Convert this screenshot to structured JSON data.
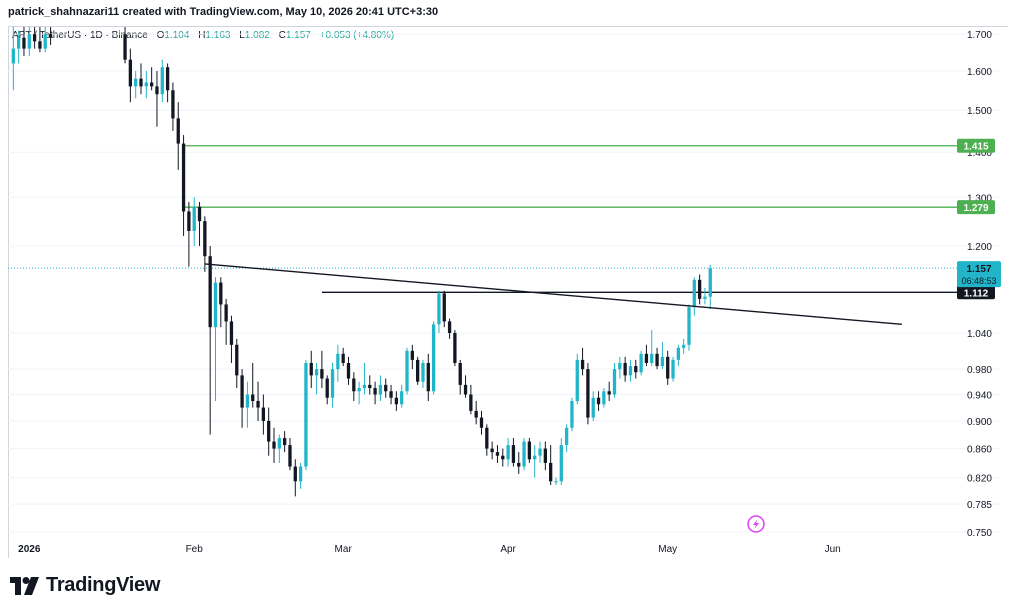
{
  "header": {
    "credit": "patrick_shahnazari11 created with TradingView.com, May 10, 2026 20:41 UTC+3:30"
  },
  "legend": {
    "symbol": "APT / TetherUS · 1D · Binance",
    "open_label": "O",
    "open": "1.104",
    "high_label": "H",
    "high": "1.163",
    "low_label": "L",
    "low": "1.082",
    "close_label": "C",
    "close": "1.157",
    "change": "+0.053 (+4.80%)"
  },
  "footer": {
    "brand": "TradingView"
  },
  "colors": {
    "up": "#22b5c9",
    "down": "#131722",
    "level": "#4caf50",
    "trend": "#131722",
    "current": "#22b5c9"
  },
  "icons": {
    "lightning": "lightning-icon",
    "logo": "tradingview-logo-icon"
  },
  "chart_data": {
    "type": "candlestick",
    "symbol": "APTUSDT",
    "timeframe": "1D",
    "y_axis": {
      "ticks": [
        1.7,
        1.6,
        1.5,
        1.4,
        1.3,
        1.2,
        1.04,
        0.98,
        0.94,
        0.9,
        0.86,
        0.82,
        0.785,
        0.75
      ],
      "tick_labels": [
        "1.700",
        "1.600",
        "1.500",
        "1.400",
        "1.300",
        "1.200",
        "1.040",
        "0.980",
        "0.940",
        "0.900",
        "0.860",
        "0.820",
        "0.785",
        "0.750"
      ],
      "scale": "log",
      "range": [
        0.74,
        1.72
      ]
    },
    "x_axis": {
      "labels": [
        "2026",
        "Feb",
        "Mar",
        "Apr",
        "May",
        "Jun"
      ],
      "start_date": "2025-12-28",
      "end_date": "2026-06-24"
    },
    "horizontal_levels": [
      {
        "value": 1.415,
        "label": "1.415",
        "color": "#4caf50",
        "start_date": "2026-01-30"
      },
      {
        "value": 1.279,
        "label": "1.279",
        "color": "#4caf50",
        "start_date": "2026-01-30"
      },
      {
        "value": 1.112,
        "label": "1.112",
        "color": "#131722",
        "start_date": "2026-02-25"
      }
    ],
    "trendline": {
      "start": {
        "date": "2026-02-03",
        "value": 1.165
      },
      "end": {
        "date": "2026-06-14",
        "value": 1.055
      }
    },
    "current_price": {
      "value": 1.157,
      "label": "1.157",
      "countdown": "06:48:53"
    },
    "candles": [
      [
        "2025-12-29",
        1.62,
        1.72,
        1.55,
        1.66
      ],
      [
        "2025-12-30",
        1.66,
        1.71,
        1.62,
        1.69
      ],
      [
        "2025-12-31",
        1.69,
        1.72,
        1.64,
        1.66
      ],
      [
        "2026-01-01",
        1.66,
        1.72,
        1.64,
        1.7
      ],
      [
        "2026-01-02",
        1.7,
        1.72,
        1.66,
        1.68
      ],
      [
        "2026-01-03",
        1.68,
        1.72,
        1.65,
        1.66
      ],
      [
        "2026-01-04",
        1.66,
        1.72,
        1.65,
        1.7
      ],
      [
        "2026-01-05",
        1.7,
        1.72,
        1.67,
        1.69
      ],
      [
        "2026-01-19",
        1.7,
        1.72,
        1.62,
        1.63
      ],
      [
        "2026-01-20",
        1.63,
        1.66,
        1.52,
        1.56
      ],
      [
        "2026-01-21",
        1.56,
        1.6,
        1.53,
        1.58
      ],
      [
        "2026-01-22",
        1.58,
        1.62,
        1.54,
        1.56
      ],
      [
        "2026-01-23",
        1.56,
        1.6,
        1.53,
        1.57
      ],
      [
        "2026-01-24",
        1.57,
        1.61,
        1.55,
        1.56
      ],
      [
        "2026-01-25",
        1.56,
        1.6,
        1.46,
        1.54
      ],
      [
        "2026-01-26",
        1.54,
        1.63,
        1.52,
        1.61
      ],
      [
        "2026-01-27",
        1.61,
        1.62,
        1.52,
        1.55
      ],
      [
        "2026-01-28",
        1.55,
        1.57,
        1.45,
        1.48
      ],
      [
        "2026-01-29",
        1.48,
        1.52,
        1.36,
        1.42
      ],
      [
        "2026-01-30",
        1.42,
        1.44,
        1.22,
        1.27
      ],
      [
        "2026-01-31",
        1.27,
        1.29,
        1.16,
        1.23
      ],
      [
        "2026-02-01",
        1.23,
        1.3,
        1.2,
        1.28
      ],
      [
        "2026-02-02",
        1.28,
        1.29,
        1.2,
        1.25
      ],
      [
        "2026-02-03",
        1.25,
        1.26,
        1.15,
        1.18
      ],
      [
        "2026-02-04",
        1.18,
        1.2,
        0.88,
        1.05
      ],
      [
        "2026-02-05",
        1.05,
        1.14,
        0.93,
        1.13
      ],
      [
        "2026-02-06",
        1.13,
        1.14,
        1.05,
        1.09
      ],
      [
        "2026-02-07",
        1.09,
        1.1,
        1.02,
        1.06
      ],
      [
        "2026-02-08",
        1.06,
        1.07,
        0.99,
        1.02
      ],
      [
        "2026-02-09",
        1.02,
        1.03,
        0.95,
        0.97
      ],
      [
        "2026-02-10",
        0.97,
        0.98,
        0.89,
        0.92
      ],
      [
        "2026-02-11",
        0.92,
        0.96,
        0.89,
        0.94
      ],
      [
        "2026-02-12",
        0.94,
        0.99,
        0.92,
        0.93
      ],
      [
        "2026-02-13",
        0.93,
        0.96,
        0.9,
        0.92
      ],
      [
        "2026-02-14",
        0.92,
        0.94,
        0.88,
        0.9
      ],
      [
        "2026-02-15",
        0.9,
        0.92,
        0.85,
        0.87
      ],
      [
        "2026-02-16",
        0.87,
        0.89,
        0.84,
        0.86
      ],
      [
        "2026-02-17",
        0.86,
        0.88,
        0.84,
        0.875
      ],
      [
        "2026-02-18",
        0.875,
        0.885,
        0.855,
        0.865
      ],
      [
        "2026-02-19",
        0.865,
        0.875,
        0.83,
        0.835
      ],
      [
        "2026-02-20",
        0.835,
        0.845,
        0.795,
        0.815
      ],
      [
        "2026-02-21",
        0.815,
        0.84,
        0.805,
        0.835
      ],
      [
        "2026-02-22",
        0.835,
        0.995,
        0.83,
        0.99
      ],
      [
        "2026-02-23",
        0.99,
        1.01,
        0.95,
        0.97
      ],
      [
        "2026-02-24",
        0.97,
        0.99,
        0.94,
        0.98
      ],
      [
        "2026-02-25",
        0.98,
        1.01,
        0.95,
        0.965
      ],
      [
        "2026-02-26",
        0.965,
        0.97,
        0.925,
        0.935
      ],
      [
        "2026-02-27",
        0.935,
        0.99,
        0.92,
        0.98
      ],
      [
        "2026-02-28",
        0.98,
        1.02,
        0.96,
        1.005
      ],
      [
        "2026-03-01",
        1.005,
        1.015,
        0.985,
        0.99
      ],
      [
        "2026-03-02",
        0.99,
        1.0,
        0.955,
        0.965
      ],
      [
        "2026-03-03",
        0.965,
        0.975,
        0.93,
        0.945
      ],
      [
        "2026-03-04",
        0.945,
        0.96,
        0.925,
        0.95
      ],
      [
        "2026-03-05",
        0.95,
        0.99,
        0.94,
        0.955
      ],
      [
        "2026-03-06",
        0.955,
        0.97,
        0.94,
        0.95
      ],
      [
        "2026-03-07",
        0.95,
        0.96,
        0.925,
        0.94
      ],
      [
        "2026-03-08",
        0.94,
        0.97,
        0.93,
        0.955
      ],
      [
        "2026-03-09",
        0.955,
        0.965,
        0.935,
        0.945
      ],
      [
        "2026-03-10",
        0.945,
        0.955,
        0.925,
        0.935
      ],
      [
        "2026-03-11",
        0.935,
        0.945,
        0.915,
        0.925
      ],
      [
        "2026-03-12",
        0.925,
        0.955,
        0.92,
        0.945
      ],
      [
        "2026-03-13",
        0.945,
        1.015,
        0.94,
        1.01
      ],
      [
        "2026-03-14",
        1.01,
        1.02,
        0.98,
        0.995
      ],
      [
        "2026-03-15",
        0.995,
        1.0,
        0.955,
        0.96
      ],
      [
        "2026-03-16",
        0.96,
        0.995,
        0.95,
        0.99
      ],
      [
        "2026-03-17",
        0.99,
        1.005,
        0.93,
        0.945
      ],
      [
        "2026-03-18",
        0.945,
        1.06,
        0.94,
        1.055
      ],
      [
        "2026-03-19",
        1.055,
        1.115,
        1.04,
        1.11
      ],
      [
        "2026-03-20",
        1.11,
        1.115,
        1.05,
        1.06
      ],
      [
        "2026-03-21",
        1.06,
        1.065,
        1.03,
        1.04
      ],
      [
        "2026-03-22",
        1.04,
        1.045,
        0.985,
        0.99
      ],
      [
        "2026-03-23",
        0.99,
        0.995,
        0.94,
        0.955
      ],
      [
        "2026-03-24",
        0.955,
        0.97,
        0.935,
        0.94
      ],
      [
        "2026-03-25",
        0.94,
        0.955,
        0.91,
        0.915
      ],
      [
        "2026-03-26",
        0.915,
        0.93,
        0.895,
        0.905
      ],
      [
        "2026-03-27",
        0.905,
        0.915,
        0.88,
        0.89
      ],
      [
        "2026-03-28",
        0.89,
        0.895,
        0.85,
        0.86
      ],
      [
        "2026-03-29",
        0.86,
        0.87,
        0.845,
        0.855
      ],
      [
        "2026-03-30",
        0.855,
        0.865,
        0.84,
        0.85
      ],
      [
        "2026-03-31",
        0.85,
        0.86,
        0.835,
        0.845
      ],
      [
        "2026-04-01",
        0.845,
        0.875,
        0.835,
        0.865
      ],
      [
        "2026-04-02",
        0.865,
        0.875,
        0.835,
        0.84
      ],
      [
        "2026-04-03",
        0.84,
        0.855,
        0.825,
        0.835
      ],
      [
        "2026-04-04",
        0.835,
        0.875,
        0.83,
        0.87
      ],
      [
        "2026-04-05",
        0.87,
        0.875,
        0.84,
        0.845
      ],
      [
        "2026-04-06",
        0.845,
        0.865,
        0.82,
        0.85
      ],
      [
        "2026-04-07",
        0.85,
        0.87,
        0.84,
        0.86
      ],
      [
        "2026-04-08",
        0.86,
        0.87,
        0.83,
        0.84
      ],
      [
        "2026-04-09",
        0.84,
        0.865,
        0.81,
        0.815
      ],
      [
        "2026-04-10",
        0.815,
        0.82,
        0.81,
        0.815
      ],
      [
        "2026-04-11",
        0.815,
        0.875,
        0.81,
        0.865
      ],
      [
        "2026-04-12",
        0.865,
        0.895,
        0.855,
        0.89
      ],
      [
        "2026-04-13",
        0.89,
        0.935,
        0.885,
        0.93
      ],
      [
        "2026-04-14",
        0.93,
        1.005,
        0.925,
        0.995
      ],
      [
        "2026-04-15",
        0.995,
        1.015,
        0.97,
        0.98
      ],
      [
        "2026-04-16",
        0.98,
        0.99,
        0.895,
        0.905
      ],
      [
        "2026-04-17",
        0.905,
        0.945,
        0.9,
        0.935
      ],
      [
        "2026-04-18",
        0.935,
        0.945,
        0.915,
        0.925
      ],
      [
        "2026-04-19",
        0.925,
        0.95,
        0.92,
        0.945
      ],
      [
        "2026-04-20",
        0.945,
        0.96,
        0.93,
        0.94
      ],
      [
        "2026-04-21",
        0.94,
        0.99,
        0.935,
        0.98
      ],
      [
        "2026-04-22",
        0.98,
        1.0,
        0.965,
        0.99
      ],
      [
        "2026-04-23",
        0.99,
        1.0,
        0.96,
        0.97
      ],
      [
        "2026-04-24",
        0.97,
        0.995,
        0.96,
        0.985
      ],
      [
        "2026-04-25",
        0.985,
        0.995,
        0.965,
        0.975
      ],
      [
        "2026-04-26",
        0.975,
        1.01,
        0.97,
        1.005
      ],
      [
        "2026-04-27",
        1.005,
        1.02,
        0.985,
        0.99
      ],
      [
        "2026-04-28",
        0.99,
        1.045,
        0.985,
        1.005
      ],
      [
        "2026-04-29",
        1.005,
        1.015,
        0.98,
        0.985
      ],
      [
        "2026-04-30",
        0.985,
        1.025,
        0.98,
        1.0
      ],
      [
        "2026-05-01",
        1.0,
        1.01,
        0.955,
        0.965
      ],
      [
        "2026-05-02",
        0.965,
        1.0,
        0.96,
        0.995
      ],
      [
        "2026-05-03",
        0.995,
        1.02,
        0.985,
        1.015
      ],
      [
        "2026-05-04",
        1.015,
        1.03,
        1.005,
        1.02
      ],
      [
        "2026-05-05",
        1.02,
        1.09,
        1.01,
        1.085
      ],
      [
        "2026-05-06",
        1.085,
        1.14,
        1.07,
        1.135
      ],
      [
        "2026-05-07",
        1.135,
        1.145,
        1.09,
        1.1
      ],
      [
        "2026-05-08",
        1.1,
        1.12,
        1.09,
        1.104
      ],
      [
        "2026-05-09",
        1.104,
        1.163,
        1.082,
        1.157
      ]
    ]
  }
}
